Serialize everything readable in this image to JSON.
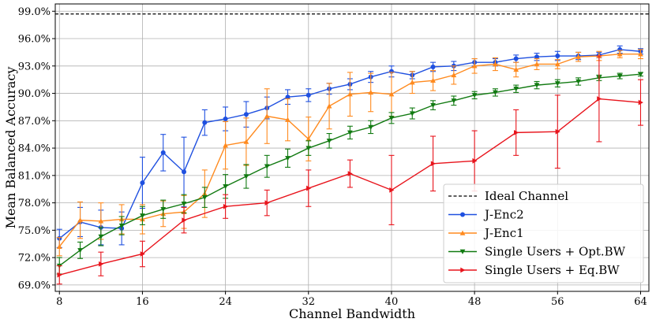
{
  "chart_data": {
    "type": "line",
    "title": "",
    "xlabel": "Channel Bandwidth",
    "ylabel": "Mean Balanced Accuracy",
    "xlim": [
      7.6,
      64.8
    ],
    "ylim": [
      68.3,
      99.8
    ],
    "xticks": [
      8,
      16,
      24,
      32,
      40,
      48,
      56,
      64
    ],
    "xtick_labels": [
      "8",
      "16",
      "24",
      "32",
      "40",
      "48",
      "56",
      "64"
    ],
    "yticks": [
      69,
      72,
      75,
      78,
      81,
      84,
      87,
      90,
      93,
      96,
      99
    ],
    "ytick_labels": [
      "69.0%",
      "72.0%",
      "75.0%",
      "78.0%",
      "81.0%",
      "84.0%",
      "87.0%",
      "90.0%",
      "93.0%",
      "96.0%",
      "99.0%"
    ],
    "grid": true,
    "legend_position": "lower-right",
    "reference_line": {
      "name": "Ideal Channel",
      "y": 98.7,
      "color": "#000000"
    },
    "x": [
      8,
      10,
      12,
      14,
      16,
      18,
      20,
      22,
      24,
      26,
      28,
      30,
      32,
      34,
      36,
      38,
      40,
      42,
      44,
      46,
      48,
      50,
      52,
      54,
      56,
      58,
      60,
      62,
      64
    ],
    "series": [
      {
        "name": "J-Enc2",
        "color": "#1f50e0",
        "marker": "circle",
        "values": [
          74.1,
          75.9,
          75.3,
          75.2,
          80.2,
          83.5,
          81.4,
          86.8,
          87.2,
          87.7,
          88.4,
          89.6,
          89.8,
          90.5,
          91.0,
          91.8,
          92.4,
          92.0,
          92.9,
          93.0,
          93.4,
          93.4,
          93.8,
          94.0,
          94.1,
          94.1,
          94.2,
          94.8,
          94.6
        ],
        "errors": [
          1.0,
          1.6,
          1.9,
          1.8,
          2.8,
          2.0,
          3.8,
          1.4,
          1.3,
          1.4,
          1.2,
          0.8,
          0.7,
          0.6,
          0.6,
          0.6,
          0.6,
          0.4,
          0.5,
          0.5,
          0.4,
          0.4,
          0.4,
          0.4,
          0.5,
          0.4,
          0.3,
          0.4,
          0.3
        ]
      },
      {
        "name": "J-Enc1",
        "color": "#ff8a1e",
        "marker": "triangle-up",
        "values": [
          73.2,
          76.1,
          76.0,
          76.2,
          76.2,
          76.8,
          77.0,
          79.0,
          84.3,
          84.7,
          87.5,
          87.1,
          85.0,
          88.6,
          89.9,
          90.1,
          89.9,
          91.2,
          91.4,
          92.0,
          93.0,
          93.2,
          92.6,
          93.2,
          93.2,
          94.0,
          94.1,
          94.3,
          94.3
        ],
        "errors": [
          1.0,
          2.0,
          2.0,
          1.6,
          1.6,
          1.4,
          1.8,
          2.6,
          2.6,
          2.6,
          3.0,
          2.3,
          2.4,
          2.5,
          2.4,
          2.1,
          2.4,
          1.2,
          1.1,
          1.0,
          0.8,
          0.7,
          0.8,
          0.6,
          0.5,
          0.5,
          0.5,
          0.4,
          0.5
        ]
      },
      {
        "name": "Single Users + Opt.BW",
        "color": "#117a11",
        "marker": "triangle-down",
        "values": [
          71.1,
          72.8,
          74.3,
          75.5,
          76.6,
          77.3,
          77.9,
          78.6,
          79.8,
          80.9,
          82.0,
          82.9,
          84.0,
          84.8,
          85.7,
          86.3,
          87.3,
          87.8,
          88.7,
          89.2,
          89.8,
          90.1,
          90.5,
          90.9,
          91.1,
          91.3,
          91.7,
          91.9,
          92.1
        ],
        "errors": [
          0.9,
          0.9,
          1.0,
          1.0,
          1.0,
          1.0,
          1.0,
          1.1,
          1.3,
          1.3,
          1.2,
          1.0,
          0.8,
          0.8,
          0.7,
          0.7,
          0.6,
          0.6,
          0.5,
          0.5,
          0.4,
          0.4,
          0.4,
          0.4,
          0.4,
          0.4,
          0.3,
          0.3,
          0.2
        ]
      },
      {
        "name": "Single Users + Eq.BW",
        "color": "#e8141c",
        "marker": "triangle-right",
        "x": [
          8,
          12,
          16,
          20,
          24,
          28,
          32,
          36,
          40,
          44,
          48,
          52,
          56,
          60,
          64
        ],
        "values": [
          70.1,
          71.3,
          72.4,
          76.1,
          77.6,
          78.0,
          79.6,
          81.2,
          79.4,
          82.3,
          82.6,
          85.7,
          85.8,
          89.4,
          89.0
        ],
        "errors": [
          1.0,
          1.3,
          1.4,
          1.4,
          1.3,
          1.4,
          2.0,
          1.5,
          3.8,
          3.0,
          3.3,
          2.5,
          4.0,
          4.7,
          2.5
        ]
      }
    ]
  }
}
